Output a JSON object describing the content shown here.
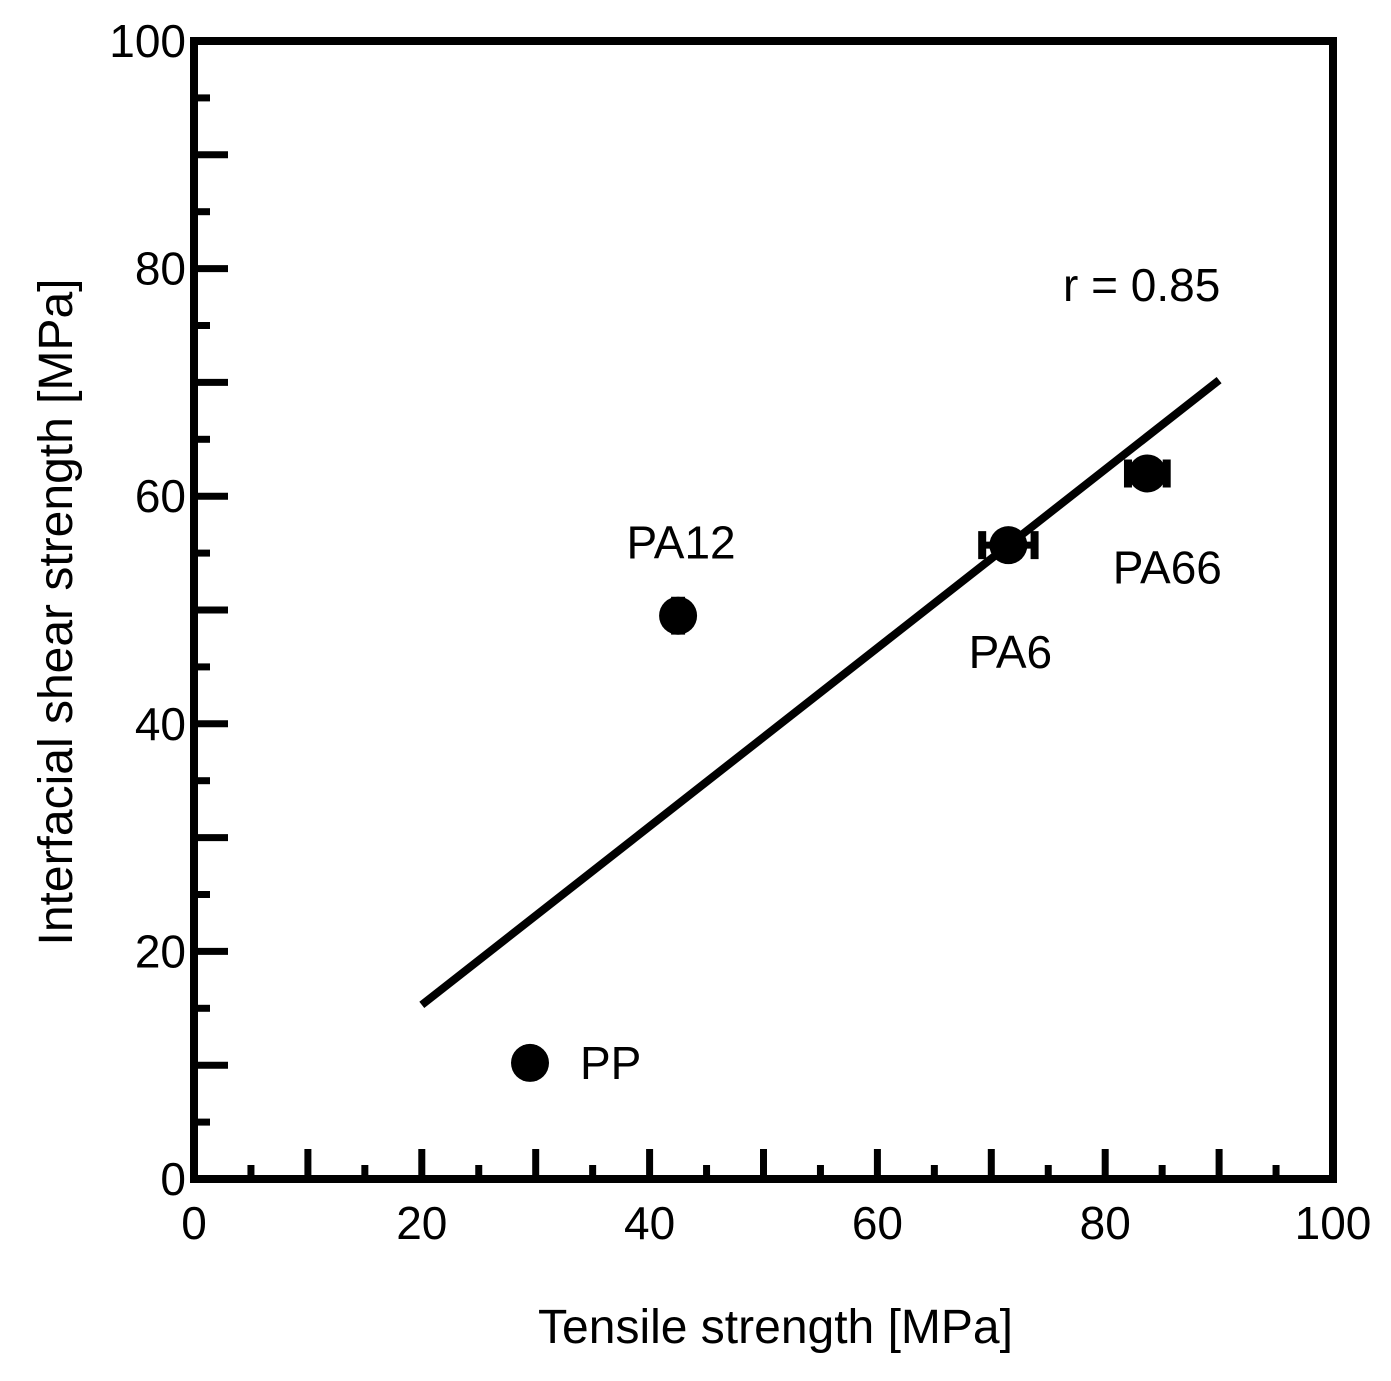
{
  "chart_data": {
    "type": "scatter",
    "title": "",
    "xlabel": "Tensile strength [MPa]",
    "ylabel": "Interfacial shear strength [MPa]",
    "xlim": [
      0,
      100
    ],
    "ylim": [
      0,
      100
    ],
    "xticks": [
      0,
      20,
      40,
      60,
      80,
      100
    ],
    "yticks": [
      0,
      20,
      40,
      60,
      80,
      100
    ],
    "grid": false,
    "points": [
      {
        "label": "PP",
        "x": 29.5,
        "y": 10.2,
        "yerr": 1.3,
        "xerr": 0
      },
      {
        "label": "PA12",
        "x": 42.5,
        "y": 49.5,
        "yerr": 1.4,
        "xerr": 0
      },
      {
        "label": "PA6",
        "x": 71.5,
        "y": 55.7,
        "yerr": 0.5,
        "xerr": 2.3
      },
      {
        "label": "PA66",
        "x": 83.7,
        "y": 62.0,
        "yerr": 0.5,
        "xerr": 1.7
      }
    ],
    "fit_line": {
      "x": [
        20,
        90
      ],
      "y": [
        15.3,
        70.2
      ]
    },
    "annotation": "r = 0.85",
    "colors": {
      "marker": "#000000",
      "line": "#000000",
      "axes": "#000000"
    }
  }
}
